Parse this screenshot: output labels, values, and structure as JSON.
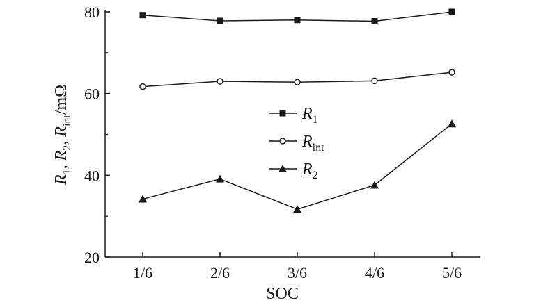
{
  "chart_data": {
    "type": "line",
    "x": [
      "1/6",
      "2/6",
      "3/6",
      "4/6",
      "5/6"
    ],
    "xlabel": "SOC",
    "ylabel": {
      "parts": [
        {
          "text": "R",
          "sub": "1",
          "sep": ", "
        },
        {
          "text": "R",
          "sub": "2",
          "sep": ", "
        },
        {
          "text": "R",
          "sub": "int",
          "sep": "/mΩ"
        }
      ]
    },
    "ylim": [
      20,
      80
    ],
    "yticks": [
      20,
      40,
      60,
      80
    ],
    "grid": false,
    "legend_position": "center",
    "series": [
      {
        "name": "R",
        "sub": "1",
        "marker": "square-filled",
        "values": [
          79.2,
          77.8,
          78.0,
          77.7,
          80.0
        ]
      },
      {
        "name": "R",
        "sub": "int",
        "marker": "circle-open",
        "values": [
          61.7,
          63.0,
          62.8,
          63.1,
          65.2
        ]
      },
      {
        "name": "R",
        "sub": "2",
        "marker": "triangle-filled",
        "values": [
          34.2,
          39.1,
          31.7,
          37.6,
          52.6
        ]
      }
    ],
    "colors": {
      "line": "#1a1a1a",
      "marker": "#1a1a1a"
    }
  }
}
